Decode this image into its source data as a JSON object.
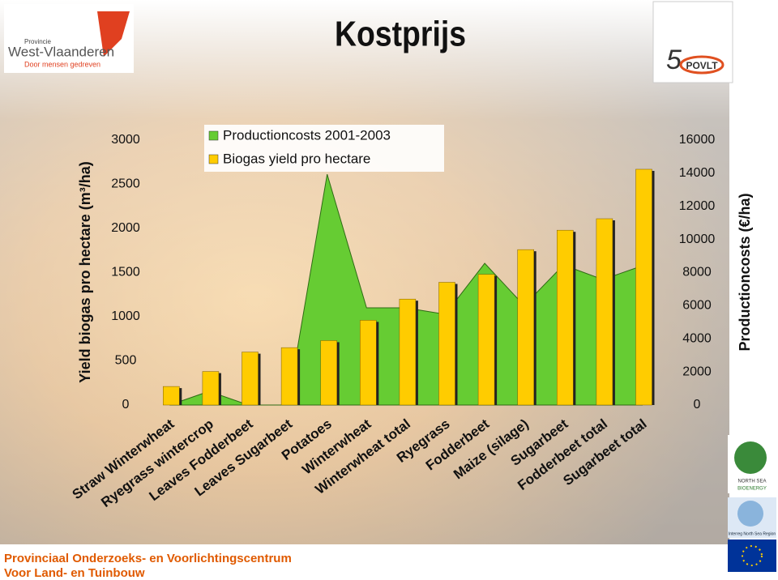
{
  "chart_data": {
    "type": "bar",
    "title": "Kostprijs",
    "y_label": "Yield biogas pro hectare (m³/ha)",
    "y2_label": "Productioncosts (€/ha)",
    "categories": [
      "Straw Winterwheat",
      "Ryegrass wintercrop",
      "Leaves Fodderbeet",
      "Leaves Sugarbeet",
      "Potatoes",
      "Winterwheat",
      "Winterwheat total",
      "Ryegrass",
      "Fodderbeet",
      "Maize (silage)",
      "Sugarbeet",
      "Fodderbeet total",
      "Sugarbeet total"
    ],
    "series": [
      {
        "name": "Productioncosts 2001-2003",
        "type": "area",
        "axis": "y2",
        "color": "#66cc33",
        "values": [
          0,
          830,
          0,
          0,
          13940,
          5870,
          5870,
          5480,
          8560,
          6010,
          8460,
          7580,
          8410
        ]
      },
      {
        "name": "Biogas yield pro hectare",
        "type": "bar",
        "axis": "y",
        "color": "#ffcc00",
        "values": [
          210,
          380,
          600,
          650,
          730,
          960,
          1200,
          1390,
          1480,
          1760,
          1980,
          2110,
          2670
        ]
      }
    ],
    "ylim": [
      0,
      3000
    ],
    "yticks": [
      0,
      500,
      1000,
      1500,
      2000,
      2500,
      3000
    ],
    "y2lim": [
      0,
      16000
    ],
    "y2ticks": [
      0,
      2000,
      4000,
      6000,
      8000,
      10000,
      12000,
      14000,
      16000
    ],
    "grid": false,
    "legend": "top-left"
  },
  "logos": {
    "province": [
      "Provincie",
      "West-Vlaanderen",
      "Door mensen gedreven"
    ],
    "povlt": [
      "5",
      "POVLT"
    ],
    "north_sea": [
      "NORTH SEA",
      "BIOENERGY"
    ],
    "interreg": "Interreg North Sea Region"
  },
  "footer": [
    "Provinciaal Onderzoeks- en Voorlichtingscentrum",
    "Voor Land- en Tuinbouw"
  ]
}
